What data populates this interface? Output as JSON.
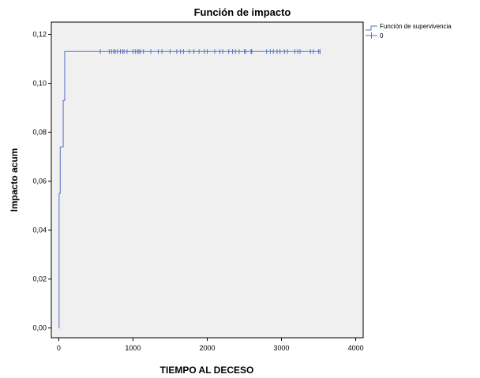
{
  "chart_data": {
    "type": "line",
    "title": "Función de impacto",
    "xlabel": "TIEMPO AL DECESO",
    "ylabel": "Impacto acum",
    "xlim": [
      -100,
      4100
    ],
    "ylim": [
      -0.004,
      0.125
    ],
    "x_ticks": [
      0,
      1000,
      2000,
      3000,
      4000
    ],
    "x_tick_labels": [
      "0",
      "1000",
      "2000",
      "3000",
      "4000"
    ],
    "y_ticks": [
      0.0,
      0.02,
      0.04,
      0.06,
      0.08,
      0.1,
      0.12
    ],
    "y_tick_labels": [
      "0,00",
      "0,02",
      "0,04",
      "0,06",
      "0,08",
      "0,10",
      "0,12"
    ],
    "grid": false,
    "legend_position": "outside-top-right",
    "plot_background": "#f0f0f0",
    "series": [
      {
        "name": "Función de supervivencia",
        "color": "#5470c6",
        "step_points": [
          {
            "x": 0,
            "y": 0.0
          },
          {
            "x": 5,
            "y": 0.055
          },
          {
            "x": 20,
            "y": 0.074
          },
          {
            "x": 55,
            "y": 0.074
          },
          {
            "x": 60,
            "y": 0.093
          },
          {
            "x": 75,
            "y": 0.093
          },
          {
            "x": 80,
            "y": 0.113
          },
          {
            "x": 3520,
            "y": 0.113
          }
        ]
      },
      {
        "name": "0",
        "color": "#5470c6",
        "censored_x": [
          560,
          680,
          710,
          740,
          760,
          790,
          830,
          860,
          880,
          920,
          1000,
          1030,
          1060,
          1080,
          1100,
          1140,
          1240,
          1340,
          1390,
          1500,
          1590,
          1640,
          1680,
          1760,
          1820,
          1890,
          1960,
          2000,
          2100,
          2170,
          2210,
          2290,
          2340,
          2380,
          2430,
          2500,
          2520,
          2590,
          2600,
          2800,
          2850,
          2890,
          2940,
          2980,
          3040,
          3080,
          3180,
          3220,
          3250,
          3390,
          3430,
          3500,
          3520
        ],
        "censored_y": 0.113
      }
    ]
  }
}
